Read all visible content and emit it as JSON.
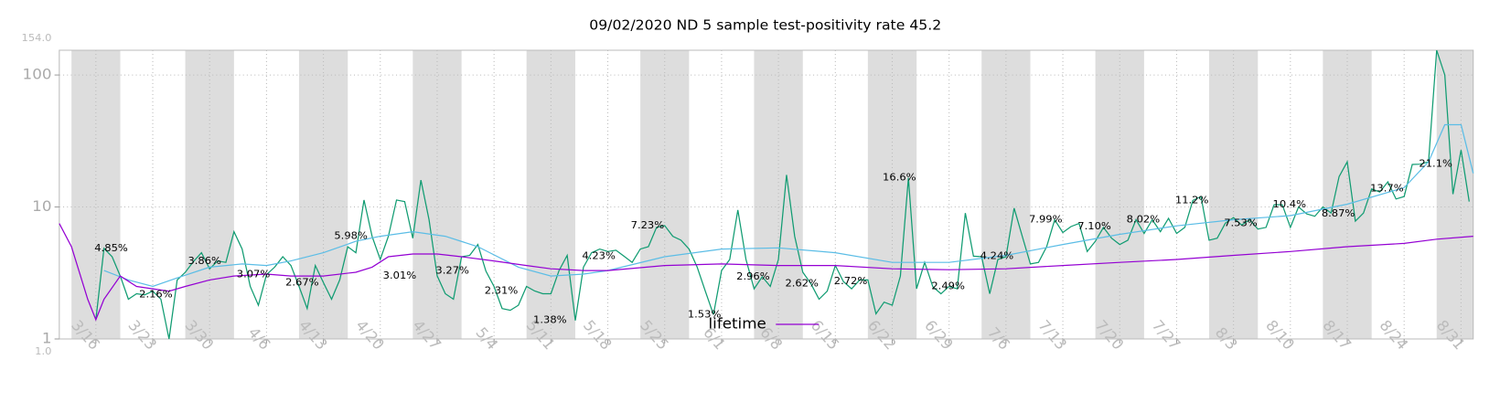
{
  "chart_data": {
    "type": "line",
    "title": "09/02/2020 ND 5 sample test-positivity rate 45.2",
    "log_y": true,
    "grid": true,
    "legend": "lower center",
    "xlim": [
      71.5,
      245.5
    ],
    "xticks": [
      {
        "value": 76,
        "label": "3/16"
      },
      {
        "value": 83,
        "label": "3/23"
      },
      {
        "value": 90,
        "label": "3/30"
      },
      {
        "value": 97,
        "label": "4/6"
      },
      {
        "value": 104,
        "label": "4/13"
      },
      {
        "value": 111,
        "label": "4/20"
      },
      {
        "value": 118,
        "label": "4/27"
      },
      {
        "value": 125,
        "label": "5/4"
      },
      {
        "value": 132,
        "label": "5/11"
      },
      {
        "value": 139,
        "label": "5/18"
      },
      {
        "value": 146,
        "label": "5/25"
      },
      {
        "value": 153,
        "label": "6/1"
      },
      {
        "value": 160,
        "label": "6/8"
      },
      {
        "value": 167,
        "label": "6/15"
      },
      {
        "value": 174,
        "label": "6/22"
      },
      {
        "value": 181,
        "label": "6/29"
      },
      {
        "value": 188,
        "label": "7/6"
      },
      {
        "value": 195,
        "label": "7/13"
      },
      {
        "value": 202,
        "label": "7/20"
      },
      {
        "value": 209,
        "label": "7/27"
      },
      {
        "value": 216,
        "label": "8/3"
      },
      {
        "value": 223,
        "label": "8/10"
      },
      {
        "value": 230,
        "label": "8/17"
      },
      {
        "value": 237,
        "label": "8/24"
      },
      {
        "value": 244,
        "label": "8/31"
      }
    ],
    "ylim": [
      1,
      154
    ],
    "ylim_labels": [
      "1.0",
      "154.0"
    ],
    "yticks": [
      1,
      10,
      100
    ],
    "series": [
      {
        "color": "#119c72",
        "x": [
          76,
          77,
          78,
          79,
          80,
          81,
          82,
          83,
          84,
          85,
          86,
          87,
          88,
          89,
          90,
          91,
          92,
          93,
          94,
          95,
          96,
          97,
          98,
          99,
          100,
          101,
          102,
          103,
          104,
          105,
          106,
          107,
          108,
          109,
          110,
          111,
          112,
          113,
          114,
          115,
          116,
          117,
          118,
          119,
          120,
          121,
          122,
          123,
          124,
          125,
          126,
          127,
          128,
          129,
          130,
          131,
          132,
          133,
          134,
          135,
          136,
          137,
          138,
          139,
          140,
          141,
          142,
          143,
          144,
          145,
          146,
          147,
          148,
          149,
          150,
          151,
          152,
          153,
          154,
          155,
          156,
          157,
          158,
          159,
          160,
          161,
          162,
          163,
          164,
          165,
          166,
          167,
          168,
          169,
          170,
          171,
          172,
          173,
          174,
          175,
          176,
          177,
          178,
          179,
          180,
          181,
          182,
          183,
          184,
          185,
          186,
          187,
          188,
          189,
          190,
          191,
          192,
          193,
          194,
          195,
          196,
          197,
          198,
          199,
          200,
          201,
          202,
          203,
          204,
          205,
          206,
          207,
          208,
          209,
          210,
          211,
          212,
          213,
          214,
          215,
          216,
          217,
          218,
          219,
          220,
          221,
          222,
          223,
          224,
          225,
          226,
          227,
          228,
          229,
          230,
          231,
          232,
          233,
          234,
          235,
          236,
          237,
          238,
          239,
          240,
          241,
          242,
          243,
          244,
          245
        ],
        "values": [
          1.4,
          4.85,
          4.2,
          3.0,
          2.0,
          2.2,
          2.16,
          2.3,
          2.0,
          1.0,
          2.8,
          3.2,
          3.86,
          4.5,
          3.4,
          3.9,
          3.8,
          6.5,
          4.8,
          2.5,
          1.8,
          3.07,
          3.5,
          4.2,
          3.6,
          2.5,
          1.7,
          3.6,
          2.67,
          2.0,
          2.8,
          5.0,
          4.5,
          11.3,
          5.98,
          4.0,
          6.0,
          11.3,
          11.0,
          5.8,
          16.0,
          8.0,
          3.01,
          2.2,
          2.0,
          4.2,
          4.3,
          5.2,
          3.27,
          2.5,
          1.7,
          1.65,
          1.8,
          2.5,
          2.31,
          2.2,
          2.2,
          3.3,
          4.3,
          1.38,
          3.5,
          4.5,
          4.8,
          4.6,
          4.7,
          4.23,
          3.8,
          4.8,
          5.0,
          7.0,
          7.23,
          6.0,
          5.6,
          4.8,
          3.5,
          2.3,
          1.53,
          3.3,
          4.0,
          9.5,
          4.0,
          2.4,
          2.96,
          2.5,
          4.0,
          17.5,
          6.0,
          3.2,
          2.62,
          2.0,
          2.3,
          3.6,
          2.72,
          2.4,
          2.8,
          2.8,
          1.55,
          1.9,
          1.8,
          3.0,
          16.6,
          2.4,
          3.8,
          2.49,
          2.2,
          2.5,
          2.4,
          9.0,
          4.24,
          4.2,
          2.2,
          4.0,
          4.2,
          9.8,
          6.0,
          3.7,
          3.8,
          5.0,
          7.99,
          6.4,
          7.1,
          7.5,
          4.6,
          5.5,
          7.0,
          5.8,
          5.2,
          5.6,
          8.02,
          6.3,
          8.0,
          6.5,
          8.2,
          6.3,
          7.0,
          11.2,
          12.0,
          5.6,
          5.8,
          7.53,
          8.3,
          7.3,
          8.0,
          6.8,
          7.0,
          10.4,
          10.4,
          7.0,
          10.0,
          8.87,
          8.5,
          10.0,
          9.0,
          17.0,
          22.0,
          7.8,
          9.0,
          13.7,
          13.0,
          15.5,
          11.5,
          12.0,
          21.0,
          21.1,
          22.0,
          154,
          100,
          12.5,
          27.0,
          11.0
        ]
      },
      {
        "color": "#5bbde6",
        "x": [
          77,
          80,
          83,
          86,
          90,
          94,
          97,
          100,
          104,
          108,
          111,
          115,
          119,
          123,
          128,
          132,
          136,
          139,
          146,
          153,
          160,
          167,
          174,
          181,
          188,
          195,
          202,
          209,
          216,
          223,
          230,
          237,
          240,
          242,
          244,
          245.5
        ],
        "values": [
          3.3,
          2.8,
          2.5,
          2.9,
          3.5,
          3.7,
          3.6,
          3.9,
          4.5,
          5.5,
          6.0,
          6.5,
          6.0,
          5.0,
          3.5,
          3.0,
          3.1,
          3.3,
          4.2,
          4.8,
          4.9,
          4.5,
          3.8,
          3.8,
          4.3,
          5.2,
          6.2,
          7.2,
          8.0,
          8.6,
          10.5,
          14.0,
          22.0,
          42.0,
          42.0,
          18.0
        ]
      },
      {
        "name": "lifetime",
        "color": "#9400d3",
        "x": [
          71.5,
          73,
          75,
          76,
          77,
          79,
          81,
          83,
          85,
          87,
          90,
          93,
          97,
          100,
          104,
          108,
          110,
          112,
          115,
          118,
          121,
          125,
          129,
          132,
          136,
          139,
          146,
          153,
          160,
          167,
          174,
          181,
          188,
          195,
          202,
          209,
          216,
          223,
          230,
          237,
          241,
          245.5
        ],
        "values": [
          7.5,
          5.0,
          2.0,
          1.4,
          2.0,
          3.0,
          2.5,
          2.4,
          2.3,
          2.5,
          2.8,
          3.0,
          3.1,
          3.0,
          3.0,
          3.2,
          3.5,
          4.2,
          4.4,
          4.4,
          4.2,
          3.9,
          3.6,
          3.4,
          3.3,
          3.3,
          3.6,
          3.7,
          3.6,
          3.6,
          3.4,
          3.35,
          3.4,
          3.6,
          3.8,
          4.0,
          4.3,
          4.6,
          5.0,
          5.3,
          5.7,
          6.0
        ]
      }
    ],
    "annotations": [
      {
        "x": 76,
        "y": 4.85,
        "label": "4.85%"
      },
      {
        "x": 81.5,
        "y": 2.16,
        "label": "2.16%"
      },
      {
        "x": 87.5,
        "y": 3.86,
        "label": "3.86%"
      },
      {
        "x": 93.5,
        "y": 3.07,
        "label": "3.07%"
      },
      {
        "x": 99.5,
        "y": 2.67,
        "label": "2.67%"
      },
      {
        "x": 105.5,
        "y": 5.98,
        "label": "5.98%"
      },
      {
        "x": 111.5,
        "y": 3.01,
        "label": "3.01%"
      },
      {
        "x": 118,
        "y": 3.27,
        "label": "3.27%"
      },
      {
        "x": 124,
        "y": 2.31,
        "label": "2.31%"
      },
      {
        "x": 130,
        "y": 1.38,
        "label": "1.38%"
      },
      {
        "x": 136,
        "y": 4.23,
        "label": "4.23%"
      },
      {
        "x": 142,
        "y": 7.23,
        "label": "7.23%"
      },
      {
        "x": 149,
        "y": 1.53,
        "label": "1.53%"
      },
      {
        "x": 155,
        "y": 2.96,
        "label": "2.96%"
      },
      {
        "x": 161,
        "y": 2.62,
        "label": "2.62%"
      },
      {
        "x": 167,
        "y": 2.72,
        "label": "2.72%"
      },
      {
        "x": 173,
        "y": 16.6,
        "label": "16.6%"
      },
      {
        "x": 179,
        "y": 2.49,
        "label": "2.49%"
      },
      {
        "x": 185,
        "y": 4.24,
        "label": "4.24%"
      },
      {
        "x": 191,
        "y": 7.99,
        "label": "7.99%"
      },
      {
        "x": 197,
        "y": 7.1,
        "label": "7.10%"
      },
      {
        "x": 203,
        "y": 8.02,
        "label": "8.02%"
      },
      {
        "x": 209,
        "y": 11.2,
        "label": "11.2%"
      },
      {
        "x": 215,
        "y": 7.53,
        "label": "7.53%"
      },
      {
        "x": 221,
        "y": 10.4,
        "label": "10.4%"
      },
      {
        "x": 227,
        "y": 8.87,
        "label": "8.87%"
      },
      {
        "x": 233,
        "y": 13.7,
        "label": "13.7%"
      },
      {
        "x": 239,
        "y": 21.1,
        "label": "21.1%"
      }
    ]
  }
}
